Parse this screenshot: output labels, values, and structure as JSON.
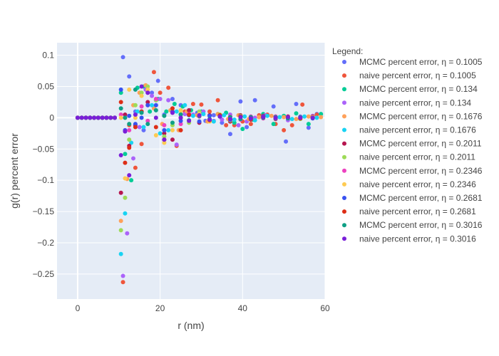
{
  "chart_data": {
    "type": "scatter",
    "xlabel": "r (nm)",
    "ylabel": "g(r) percent error",
    "xlim": [
      -5,
      60
    ],
    "ylim": [
      -0.29,
      0.12
    ],
    "x_ticks": [
      0,
      20,
      40,
      60
    ],
    "y_ticks": [
      0.1,
      0.05,
      0,
      -0.05,
      -0.1,
      -0.15,
      -0.2,
      -0.25
    ],
    "x_tick_labels": [
      "0",
      "20",
      "40",
      "60"
    ],
    "y_tick_labels": [
      "0.1",
      "0.05",
      "0",
      "−0.05",
      "−0.1",
      "−0.15",
      "−0.2",
      "−0.25"
    ],
    "grid": true,
    "legend_title": "Legend:",
    "legend_position": "right",
    "series": [
      {
        "name": "MCMC percent error, η = 0.1005",
        "color": "#636efa",
        "x": [
          11,
          12.5,
          14,
          16,
          18,
          19.5,
          21,
          23,
          25,
          27,
          29,
          31,
          33,
          35,
          37,
          39.5,
          41,
          43,
          45,
          47.5,
          50.5,
          53,
          56,
          58
        ],
        "y": [
          0.097,
          0.066,
          0.01,
          -0.02,
          0.04,
          0.059,
          0.005,
          0.03,
          0.02,
          0.012,
          0.008,
          -0.005,
          0.004,
          -0.008,
          -0.026,
          0.026,
          -0.015,
          0.028,
          0.004,
          0.018,
          -0.038,
          0.022,
          -0.016,
          0.006
        ]
      },
      {
        "name": "naive percent error, η = 0.1005",
        "color": "#ef553b",
        "x": [
          11,
          12.5,
          14,
          15.5,
          17,
          18.5,
          20,
          22,
          24,
          26,
          28,
          30,
          32,
          34,
          36,
          38,
          40,
          42,
          44,
          46,
          48,
          50,
          52,
          54.5,
          58
        ],
        "y": [
          -0.263,
          -0.012,
          -0.08,
          -0.042,
          0.02,
          0.073,
          0.04,
          0.048,
          -0.045,
          0.01,
          0.022,
          0.021,
          0.01,
          0.028,
          -0.012,
          -0.012,
          -0.006,
          -0.01,
          0.004,
          0.005,
          -0.01,
          -0.02,
          -0.012,
          0.021,
          0.005
        ]
      },
      {
        "name": "MCMC percent error, η = 0.134",
        "color": "#00cc96",
        "x": [
          10.5,
          11.5,
          13,
          14.5,
          16,
          17.5,
          19.5,
          21.5,
          23.5,
          25.5,
          27.5,
          30,
          32,
          34,
          36,
          38,
          40,
          42.5,
          45,
          47.5,
          50,
          53,
          56,
          59
        ],
        "y": [
          0.04,
          -0.058,
          -0.1,
          0.048,
          0.05,
          0.01,
          0.03,
          0.01,
          0.022,
          0.018,
          0.012,
          0.01,
          -0.004,
          0.006,
          0.008,
          -0.008,
          -0.018,
          -0.003,
          0.006,
          -0.01,
          0.003,
          0.007,
          -0.01,
          0.006
        ]
      },
      {
        "name": "naive percent error, η = 0.134",
        "color": "#ab63fa",
        "x": [
          11,
          12,
          13.5,
          15,
          16.5,
          18,
          20,
          22,
          24,
          26,
          28,
          30.5,
          33,
          35,
          37,
          39,
          41,
          43,
          45.5,
          48,
          51,
          54,
          57
        ],
        "y": [
          -0.253,
          -0.185,
          -0.065,
          -0.015,
          0.045,
          0.035,
          0.03,
          0.028,
          -0.043,
          0.006,
          0.005,
          0.01,
          -0.005,
          -0.003,
          0.005,
          -0.012,
          -0.006,
          0.0,
          0.004,
          0.002,
          -0.004,
          0.002,
          0.003
        ]
      },
      {
        "name": "MCMC percent error, η = 0.1676",
        "color": "#ffa15a",
        "x": [
          10.5,
          12,
          13.5,
          15,
          16.5,
          18.5,
          20.5,
          22.5,
          24.5,
          26.5,
          29,
          31.5,
          34,
          36.5,
          39,
          41.5,
          44,
          47,
          50,
          53,
          56,
          59
        ],
        "y": [
          -0.165,
          -0.098,
          0.02,
          0.04,
          0.052,
          0.015,
          -0.01,
          0.012,
          -0.02,
          0.01,
          0.004,
          -0.006,
          0.006,
          -0.002,
          0.004,
          -0.002,
          0.001,
          0.003,
          0.001,
          -0.002,
          0.002,
          0.001
        ]
      },
      {
        "name": "naive percent error, η = 0.1676",
        "color": "#19d3f3",
        "x": [
          10.5,
          11.5,
          13,
          14.5,
          16,
          18,
          20,
          22,
          24,
          26,
          28,
          30.5,
          33,
          35.5,
          38,
          40.5,
          43,
          46,
          49,
          52,
          55,
          58
        ],
        "y": [
          -0.218,
          -0.153,
          -0.04,
          0.01,
          -0.015,
          0.02,
          -0.025,
          -0.02,
          0.01,
          0.02,
          0.003,
          0.006,
          -0.006,
          0.004,
          -0.003,
          0.002,
          -0.004,
          0.003,
          0.001,
          -0.002,
          0.002,
          0.0
        ]
      },
      {
        "name": "MCMC percent error, η = 0.2011",
        "color": "#b6164f",
        "x": [
          10.5,
          11.5,
          12.5,
          14,
          15.5,
          17,
          19,
          21,
          23,
          25,
          27,
          29.5,
          32,
          34.5,
          37,
          39.5,
          42,
          45,
          48,
          51,
          54,
          57
        ],
        "y": [
          -0.12,
          0.005,
          -0.045,
          -0.012,
          0.01,
          0.025,
          0.028,
          -0.025,
          -0.035,
          0.0,
          0.012,
          -0.008,
          0.004,
          0.002,
          -0.006,
          0.004,
          -0.003,
          0.003,
          -0.002,
          0.002,
          -0.001,
          0.002
        ]
      },
      {
        "name": "naive percent error, η = 0.2011",
        "color": "#9ddb57",
        "x": [
          10.5,
          11.5,
          12.5,
          14,
          15.5,
          17,
          19,
          21,
          23,
          25,
          27,
          29.5,
          32,
          34.5,
          37,
          39.5,
          42,
          45,
          48,
          51,
          54,
          57
        ],
        "y": [
          -0.18,
          -0.128,
          -0.035,
          0.02,
          0.04,
          0.05,
          0.028,
          -0.03,
          -0.012,
          0.006,
          -0.008,
          0.01,
          -0.005,
          0.005,
          -0.004,
          0.003,
          -0.002,
          0.002,
          -0.001,
          0.001,
          -0.002,
          0.001
        ]
      },
      {
        "name": "MCMC percent error, η = 0.2346",
        "color": "#ed42c0",
        "x": [
          10.5,
          11.5,
          12.5,
          14,
          15.5,
          17,
          19,
          21,
          23,
          25,
          27,
          29.5,
          32,
          34.5,
          37,
          39.5,
          42,
          45,
          48,
          51,
          54,
          57
        ],
        "y": [
          0.005,
          0.0,
          -0.02,
          0.005,
          0.018,
          -0.005,
          0.03,
          -0.012,
          0.008,
          -0.01,
          0.006,
          0.002,
          -0.004,
          0.003,
          0.002,
          -0.003,
          0.002,
          -0.001,
          0.002,
          0.0,
          -0.001,
          0.001
        ]
      },
      {
        "name": "naive percent error, η = 0.2346",
        "color": "#fecb52",
        "x": [
          10.5,
          11.5,
          12.5,
          14,
          15.5,
          17,
          19,
          21,
          23,
          25,
          27,
          29.5,
          32,
          34.5,
          37,
          39.5,
          42,
          45,
          48,
          51,
          54,
          57
        ],
        "y": [
          0.0,
          -0.097,
          0.045,
          0.0,
          0.035,
          0.045,
          -0.028,
          -0.04,
          -0.02,
          0.012,
          -0.005,
          0.006,
          -0.006,
          0.004,
          -0.003,
          0.002,
          -0.002,
          0.001,
          -0.001,
          0.001,
          0.0,
          0.001
        ]
      },
      {
        "name": "MCMC percent error, η = 0.2681",
        "color": "#3851f0",
        "x": [
          10.5,
          11.5,
          12.5,
          14,
          15.5,
          17,
          19,
          21,
          23,
          25,
          27,
          29.5,
          32,
          34.5,
          37,
          39.5,
          42,
          45,
          48,
          51,
          54,
          57
        ],
        "y": [
          0.045,
          -0.02,
          0.003,
          -0.01,
          0.0,
          0.02,
          0.02,
          -0.02,
          0.01,
          -0.005,
          0.004,
          -0.006,
          0.003,
          0.002,
          -0.003,
          0.002,
          -0.001,
          0.002,
          -0.001,
          0.001,
          0.0,
          -0.001
        ]
      },
      {
        "name": "naive percent error, η = 0.2681",
        "color": "#dd2e17",
        "x": [
          10.5,
          11.5,
          12.5,
          14,
          15.5,
          17,
          19,
          21,
          23,
          25,
          27,
          29.5,
          32,
          34.5,
          37,
          39.5,
          42,
          45,
          48,
          51,
          54,
          57
        ],
        "y": [
          0.025,
          -0.072,
          -0.048,
          -0.015,
          0.01,
          0.04,
          -0.015,
          -0.035,
          0.015,
          -0.02,
          0.005,
          0.003,
          -0.004,
          0.004,
          -0.002,
          0.002,
          -0.002,
          0.001,
          0.0,
          0.001,
          -0.001,
          0.0
        ]
      },
      {
        "name": "MCMC percent error, η = 0.3016",
        "color": "#0ea085",
        "x": [
          10.5,
          11.5,
          12.5,
          14,
          15.5,
          17,
          19,
          21,
          23,
          25,
          27,
          29.5,
          32,
          34.5,
          37,
          39.5,
          42,
          45,
          48,
          51,
          54,
          57
        ],
        "y": [
          0.015,
          0.0,
          -0.01,
          0.045,
          0.008,
          -0.01,
          0.012,
          0.003,
          -0.008,
          0.005,
          -0.004,
          0.003,
          -0.002,
          0.002,
          0.001,
          -0.002,
          0.001,
          0.0,
          0.001,
          -0.001,
          0.001,
          0.0
        ]
      },
      {
        "name": "naive percent error, η = 0.3016",
        "color": "#7a1fd9",
        "x": [
          10.5,
          11.5,
          12.5,
          14,
          15.5,
          17,
          19,
          21,
          23,
          25,
          27,
          29.5,
          32,
          34.5,
          37,
          39.5,
          42,
          45,
          48,
          51,
          54,
          57
        ],
        "y": [
          -0.06,
          -0.022,
          -0.092,
          0.005,
          0.05,
          0.04,
          0.0,
          -0.035,
          0.008,
          0.0,
          -0.005,
          0.004,
          -0.003,
          0.002,
          -0.002,
          0.001,
          -0.001,
          0.001,
          0.0,
          0.001,
          0.0,
          0.0
        ]
      }
    ]
  }
}
